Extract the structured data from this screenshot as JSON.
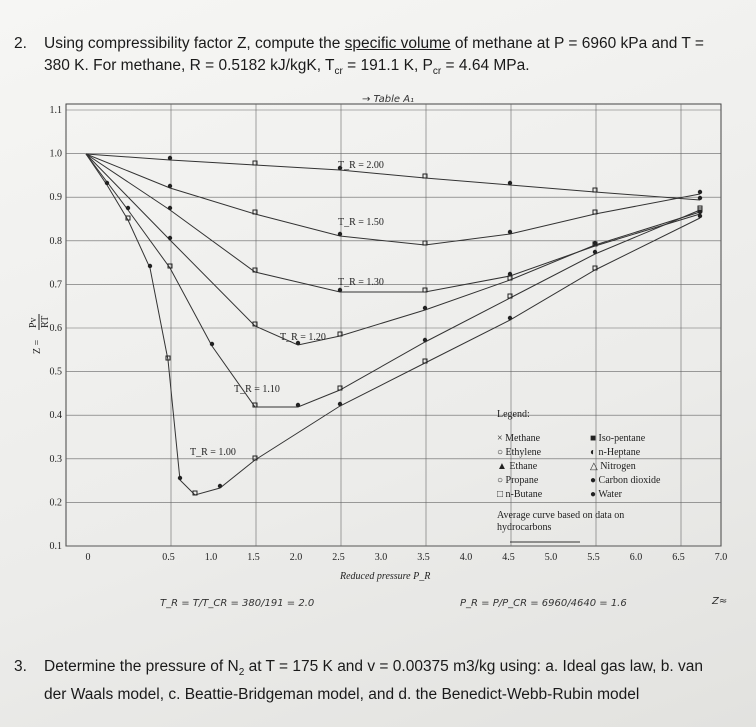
{
  "q2": {
    "number": "2.",
    "parts": [
      "Using compressibility factor Z, compute the ",
      "specific volume",
      " of methane at P = 6960 kPa and T =",
      "380 K. For methane, R = 0.5182 kJ/kgK, T",
      "cr",
      " = 191.1 K, P",
      "cr",
      " = 4.64 MPa."
    ]
  },
  "q3": {
    "number": "3.",
    "parts": [
      "Determine the pressure of N",
      "2",
      " at T = 175 K and v = 0.00375 m3/kg using: a. Ideal gas law, b. van",
      "der Waals model, c. Beattie-Bridgeman model, and d. the Benedict-Webb-Rubin model"
    ]
  },
  "handwriting": [
    "→ Table A₁",
    "T_R = T/T_CR = 380/191 = 2.0",
    "P_R = P/P_CR = 6960/4640 = 1.6",
    "Z≈"
  ],
  "figure": {
    "y_axis_label": [
      "Z =",
      "Pv",
      "RT"
    ],
    "x_axis_label": "Reduced pressure P_R",
    "yticks": [
      "1.1",
      "1.0",
      "0.9",
      "0.8",
      "0.7",
      "0.6",
      "0.5",
      "0.4",
      "0.3",
      "0.2",
      "0.1"
    ],
    "xticks": [
      "0",
      "0.5",
      "1.0",
      "1.5",
      "2.0",
      "2.5",
      "3.0",
      "3.5",
      "4.0",
      "4.5",
      "5.0",
      "5.5",
      "6.0",
      "6.5",
      "7.0"
    ],
    "curve_labels": [
      "T_R = 2.00",
      "T_R = 1.50",
      "T_R = 1.30",
      "T_R = 1.20",
      "T_R = 1.10",
      "T_R = 1.00"
    ],
    "legend": {
      "title": "Legend:",
      "items": [
        "× Methane",
        "■ Iso-pentane",
        "○ Ethylene",
        "◐ n-Heptane",
        "▲ Ethane",
        "△ Nitrogen",
        "○ Propane",
        "● Carbon dioxide",
        "□ n-Butane",
        "● Water"
      ],
      "note": [
        "Average curve based on data on",
        "hydrocarbons"
      ]
    }
  }
}
